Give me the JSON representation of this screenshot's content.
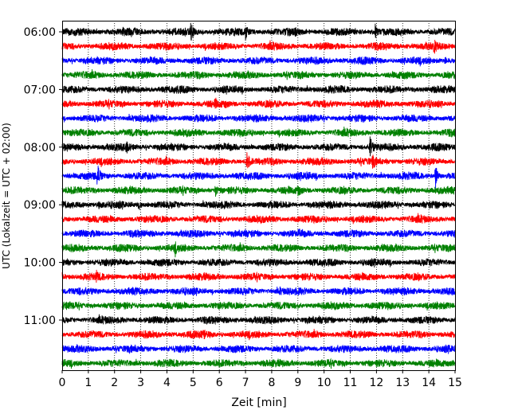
{
  "chart_data": {
    "type": "line",
    "subtype": "helicorder",
    "title": "",
    "xlabel": "Zeit  [min]",
    "ylabel": "UTC (Lokalzeit = UTC + 02:00)",
    "xlim": [
      0,
      15
    ],
    "x_ticks": [
      "0",
      "1",
      "2",
      "3",
      "4",
      "5",
      "6",
      "7",
      "8",
      "9",
      "10",
      "11",
      "12",
      "13",
      "14",
      "15"
    ],
    "vertical_grid": "dotted",
    "trace_interval_min": 15,
    "start_time": "06:00",
    "y_tick_labels": [
      "06:00",
      "07:00",
      "08:00",
      "09:00",
      "10:00",
      "11:00"
    ],
    "trace_color_cycle": [
      "#000000",
      "#ff0000",
      "#0000ff",
      "#008000"
    ],
    "trace_start_times": [
      "06:00",
      "06:15",
      "06:30",
      "06:45",
      "07:00",
      "07:15",
      "07:30",
      "07:45",
      "08:00",
      "08:15",
      "08:30",
      "08:45",
      "09:00",
      "09:15",
      "09:30",
      "09:45",
      "10:00",
      "10:15",
      "10:30",
      "10:45",
      "11:00",
      "11:15",
      "11:30",
      "11:45"
    ],
    "events": [
      {
        "trace": 0,
        "minute": 4.9,
        "amp": 3.0
      },
      {
        "trace": 0,
        "minute": 7.0,
        "amp": 1.6
      },
      {
        "trace": 0,
        "minute": 11.95,
        "amp": 1.6
      },
      {
        "trace": 0,
        "minute": 2.3,
        "amp": 0.4
      },
      {
        "trace": 0,
        "minute": 8.9,
        "amp": 0.4
      },
      {
        "trace": 1,
        "minute": 14.2,
        "amp": 1.4
      },
      {
        "trace": 2,
        "minute": 14.6,
        "amp": 1.0
      },
      {
        "trace": 4,
        "minute": 11.75,
        "amp": 0.5
      },
      {
        "trace": 4,
        "minute": 4.4,
        "amp": 0.4
      },
      {
        "trace": 5,
        "minute": 5.85,
        "amp": 0.9
      },
      {
        "trace": 5,
        "minute": 6.2,
        "amp": 0.5
      },
      {
        "trace": 8,
        "minute": 2.45,
        "amp": 1.1
      },
      {
        "trace": 8,
        "minute": 11.75,
        "amp": 4.0
      },
      {
        "trace": 8,
        "minute": 7.15,
        "amp": 0.4
      },
      {
        "trace": 9,
        "minute": 7.05,
        "amp": 3.3
      },
      {
        "trace": 9,
        "minute": 11.85,
        "amp": 1.5
      },
      {
        "trace": 10,
        "minute": 1.35,
        "amp": 3.5
      },
      {
        "trace": 10,
        "minute": 14.25,
        "amp": 3.2
      },
      {
        "trace": 10,
        "minute": 9.3,
        "amp": 0.5
      },
      {
        "trace": 11,
        "minute": 5.85,
        "amp": 1.4
      },
      {
        "trace": 11,
        "minute": 9.0,
        "amp": 1.3
      },
      {
        "trace": 12,
        "minute": 2.95,
        "amp": 1.0
      },
      {
        "trace": 12,
        "minute": 1.4,
        "amp": 0.5
      },
      {
        "trace": 14,
        "minute": 9.05,
        "amp": 0.5
      },
      {
        "trace": 15,
        "minute": 4.3,
        "amp": 1.3
      },
      {
        "trace": 17,
        "minute": 1.3,
        "amp": 0.8
      },
      {
        "trace": 18,
        "minute": 8.3,
        "amp": 0.4
      },
      {
        "trace": 19,
        "minute": 9.0,
        "amp": 0.4
      },
      {
        "trace": 21,
        "minute": 5.4,
        "amp": 0.7
      },
      {
        "trace": 23,
        "minute": 14.9,
        "amp": 0.5
      }
    ]
  }
}
